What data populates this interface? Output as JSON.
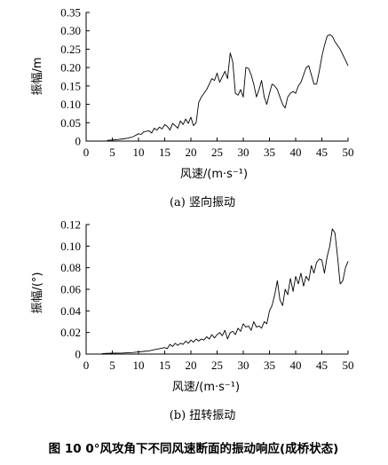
{
  "figure_title": "图 10   0°风攻角下不同风速断面的振动响应(成桥状态)",
  "chart_data": [
    {
      "type": "line",
      "caption": "(a) 竖向振动",
      "xlabel": "风速/(m·s⁻¹)",
      "ylabel": "振幅/m",
      "xlim": [
        0,
        50
      ],
      "ylim": [
        0,
        0.35
      ],
      "xticks": [
        "0",
        "5",
        "10",
        "15",
        "20",
        "25",
        "30",
        "35",
        "40",
        "45",
        "50"
      ],
      "yticks": [
        "0",
        "0.05",
        "0.10",
        "0.15",
        "0.20",
        "0.25",
        "0.30",
        "0.35"
      ],
      "grid": false,
      "series": [
        {
          "x": [
            4,
            5,
            6,
            7,
            8,
            9,
            10,
            10.5,
            11,
            12,
            12.5,
            13,
            13.5,
            14,
            14.5,
            15,
            15.5,
            16,
            16.5,
            17,
            17.5,
            18,
            18.5,
            19,
            19.5,
            20,
            20.5,
            21,
            21.5,
            22,
            22.5,
            23,
            23.5,
            24,
            24.5,
            25,
            25.5,
            26,
            26.5,
            27,
            27.5,
            28,
            28.5,
            29,
            29.5,
            30,
            30.5,
            31,
            31.5,
            32,
            32.5,
            33,
            33.5,
            34,
            34.5,
            35,
            35.5,
            36,
            36.5,
            37,
            37.5,
            38,
            38.5,
            39,
            39.5,
            40,
            40.5,
            41,
            41.5,
            42,
            42.5,
            43,
            43.5,
            44,
            44.5,
            45,
            45.5,
            46,
            46.5,
            47,
            47.5,
            48,
            48.5,
            49,
            49.5,
            50
          ],
          "y": [
            0.002,
            0.003,
            0.004,
            0.006,
            0.008,
            0.012,
            0.02,
            0.018,
            0.025,
            0.028,
            0.022,
            0.035,
            0.03,
            0.038,
            0.033,
            0.045,
            0.04,
            0.03,
            0.048,
            0.042,
            0.035,
            0.055,
            0.045,
            0.06,
            0.048,
            0.065,
            0.042,
            0.05,
            0.105,
            0.12,
            0.13,
            0.14,
            0.155,
            0.17,
            0.165,
            0.185,
            0.16,
            0.175,
            0.19,
            0.17,
            0.24,
            0.215,
            0.13,
            0.125,
            0.14,
            0.12,
            0.2,
            0.198,
            0.18,
            0.155,
            0.12,
            0.14,
            0.165,
            0.12,
            0.1,
            0.13,
            0.155,
            0.15,
            0.14,
            0.12,
            0.1,
            0.09,
            0.12,
            0.13,
            0.135,
            0.13,
            0.15,
            0.16,
            0.18,
            0.2,
            0.205,
            0.18,
            0.155,
            0.155,
            0.19,
            0.23,
            0.26,
            0.285,
            0.29,
            0.285,
            0.27,
            0.26,
            0.25,
            0.235,
            0.22,
            0.205
          ]
        }
      ]
    },
    {
      "type": "line",
      "caption": "(b) 扭转振动",
      "xlabel": "风速/(m·s⁻¹)",
      "ylabel": "振幅/(°)",
      "xlim": [
        0,
        50
      ],
      "ylim": [
        0,
        0.12
      ],
      "xticks": [
        "0",
        "5",
        "10",
        "15",
        "20",
        "25",
        "30",
        "35",
        "40",
        "45",
        "50"
      ],
      "yticks": [
        "0",
        "0.02",
        "0.04",
        "0.06",
        "0.08",
        "0.10",
        "0.12"
      ],
      "grid": false,
      "series": [
        {
          "x": [
            3,
            5,
            7,
            9,
            10,
            11,
            12,
            13,
            14,
            15,
            15.5,
            16,
            16.5,
            17,
            17.5,
            18,
            18.5,
            19,
            19.5,
            20,
            20.5,
            21,
            21.5,
            22,
            22.5,
            23,
            23.5,
            24,
            24.5,
            25,
            25.5,
            26,
            26.5,
            27,
            27.5,
            28,
            28.5,
            29,
            29.5,
            30,
            30.5,
            31,
            31.5,
            32,
            32.5,
            33,
            33.5,
            34,
            34.5,
            35,
            35.5,
            36,
            36.5,
            37,
            37.5,
            38,
            38.5,
            39,
            39.5,
            40,
            40.5,
            41,
            41.5,
            42,
            42.5,
            43,
            43.5,
            44,
            44.5,
            45,
            45.5,
            46,
            46.5,
            47,
            47.5,
            48,
            48.5,
            49,
            49.5,
            50
          ],
          "y": [
            0.0005,
            0.0008,
            0.001,
            0.0015,
            0.002,
            0.0025,
            0.003,
            0.004,
            0.005,
            0.006,
            0.005,
            0.009,
            0.007,
            0.01,
            0.008,
            0.01,
            0.009,
            0.012,
            0.01,
            0.013,
            0.011,
            0.014,
            0.012,
            0.014,
            0.013,
            0.016,
            0.014,
            0.018,
            0.015,
            0.018,
            0.02,
            0.017,
            0.022,
            0.014,
            0.02,
            0.021,
            0.018,
            0.024,
            0.021,
            0.028,
            0.025,
            0.026,
            0.022,
            0.03,
            0.025,
            0.026,
            0.024,
            0.03,
            0.028,
            0.04,
            0.045,
            0.055,
            0.068,
            0.05,
            0.045,
            0.06,
            0.055,
            0.07,
            0.058,
            0.072,
            0.065,
            0.075,
            0.063,
            0.072,
            0.068,
            0.082,
            0.075,
            0.085,
            0.088,
            0.087,
            0.075,
            0.09,
            0.1,
            0.116,
            0.112,
            0.09,
            0.065,
            0.068,
            0.08,
            0.086
          ]
        }
      ]
    }
  ]
}
